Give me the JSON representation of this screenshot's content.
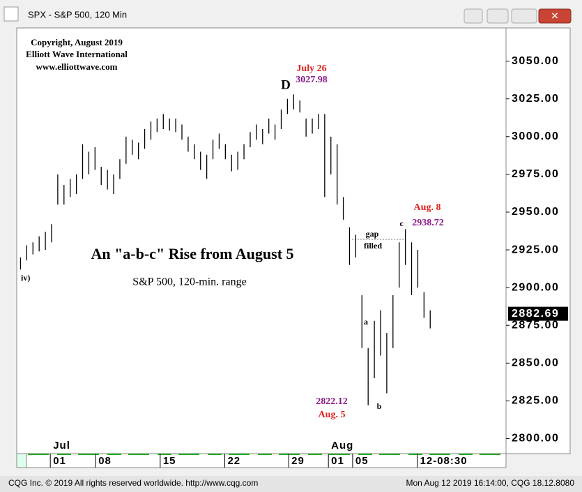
{
  "window_title": "SPX - S&P 500, 120 Min",
  "footer": {
    "left": "CQG Inc. © 2019 All rights reserved worldwide. http://www.cqg.com",
    "right": "Mon Aug 12 2019 16:14:00, CQG 18.12.8080"
  },
  "chart_data": {
    "type": "range_bar",
    "color": "#000000",
    "x": [
      0.5,
      1.5,
      2.5,
      3.5,
      4.5,
      5.5,
      6.5,
      7.5,
      8.5,
      9.5,
      10.5,
      11.5,
      12.5,
      13.5,
      14.5,
      15.5,
      16.5,
      17.5,
      18.5,
      19.5,
      20.5,
      21.5,
      22.5,
      23.5,
      24.5,
      25.5,
      26.5,
      27.5,
      28.5,
      29.5,
      30.5,
      31.5,
      32.5,
      33.5,
      34.5,
      35.5,
      36.5,
      37.5,
      38.5,
      39.5,
      40.5,
      41.5,
      42.5,
      43.5,
      44.5,
      45.5,
      46.5,
      47.5,
      48.5,
      49.5,
      50.5,
      51.5,
      52.5,
      53.5,
      54.5,
      55.5,
      56.5,
      57.5,
      58.5,
      59.5,
      60.5,
      61.5,
      62.5,
      63.5,
      64.5,
      65.5,
      66.5
    ],
    "high": [
      2920,
      2928,
      2930,
      2934,
      2937,
      2942,
      2975,
      2968,
      2972,
      2975,
      2995,
      2990,
      2993,
      2980,
      2978,
      2975,
      2985,
      3000,
      2998,
      2996,
      3005,
      3010,
      3012,
      3015,
      3012,
      3012,
      3008,
      3000,
      2995,
      2990,
      2988,
      2998,
      3002,
      2995,
      2988,
      2990,
      2995,
      3003,
      3008,
      3005,
      3012,
      3008,
      3018,
      3025,
      3027.98,
      3024,
      3012,
      3012,
      3015,
      3015,
      3000,
      2995,
      2960,
      2940,
      2935,
      2895,
      2860,
      2878,
      2885,
      2870,
      2895,
      2930,
      2938.72,
      2930,
      2925,
      2897,
      2885
    ],
    "low": [
      2912,
      2918,
      2922,
      2924,
      2925,
      2930,
      2955,
      2955,
      2960,
      2962,
      2972,
      2975,
      2978,
      2968,
      2965,
      2962,
      2972,
      2982,
      2988,
      2985,
      2992,
      2998,
      3003,
      3005,
      3004,
      3003,
      2998,
      2990,
      2985,
      2978,
      2972,
      2985,
      2992,
      2985,
      2977,
      2978,
      2985,
      2993,
      2998,
      2995,
      3002,
      2998,
      3005,
      3015,
      3018,
      3016,
      3000,
      3002,
      3005,
      2960,
      2975,
      2955,
      2945,
      2915,
      2920,
      2860,
      2822.12,
      2840,
      2855,
      2830,
      2860,
      2900,
      2915,
      2895,
      2900,
      2880,
      2873
    ],
    "last_price": 2882.69,
    "xlim": [
      0,
      78.6
    ],
    "ylim": [
      2791,
      3072
    ],
    "yticks": [
      {
        "value": 2800,
        "label": "2800.00"
      },
      {
        "value": 2825,
        "label": "2825.00"
      },
      {
        "value": 2850,
        "label": "2850.00"
      },
      {
        "value": 2875,
        "label": "2875.00"
      },
      {
        "value": 2900,
        "label": "2900.00"
      },
      {
        "value": 2925,
        "label": "2925.00"
      },
      {
        "value": 2950,
        "label": "2950.00"
      },
      {
        "value": 2975,
        "label": "2975.00"
      },
      {
        "value": 3000,
        "label": "3000.00"
      },
      {
        "value": 3025,
        "label": "3025.00"
      },
      {
        "value": 3050,
        "label": "3050.00"
      }
    ],
    "xticks": [
      {
        "value": 5.3,
        "label": "01"
      },
      {
        "value": 12.6,
        "label": "08"
      },
      {
        "value": 23.0,
        "label": "15"
      },
      {
        "value": 33.4,
        "label": "22"
      },
      {
        "value": 43.7,
        "label": "29"
      },
      {
        "value": 50.1,
        "label": "01"
      },
      {
        "value": 54.0,
        "label": "05"
      },
      {
        "value": 64.4,
        "label": "12-08:30"
      }
    ],
    "month_labels": [
      {
        "value": 5.3,
        "label": "Jul"
      },
      {
        "value": 50.1,
        "label": "Aug"
      }
    ],
    "annotations": {
      "copyright": [
        "Copyright, August 2019",
        "Elliott Wave International",
        "www.elliottwave.com"
      ],
      "peak_date": "July 26",
      "peak_value": "3027.98",
      "peak_wave": "D",
      "headline": "An \"a-b-c\" Rise from August 5",
      "subline": "S&P 500, 120-min. range",
      "wave_iv": "iv)",
      "gap": "gap",
      "filled": "filled",
      "wave_a": "a",
      "wave_b": "b",
      "wave_c": "c",
      "high_date": "Aug. 8",
      "high_value": "2938.72",
      "low_value": "2822.12",
      "low_date": "Aug. 5"
    }
  }
}
